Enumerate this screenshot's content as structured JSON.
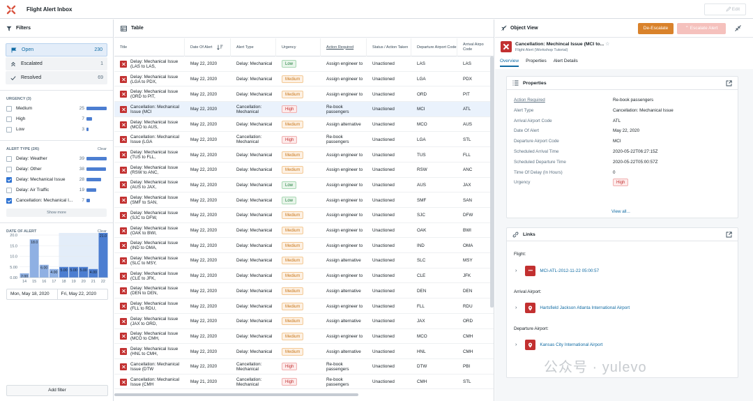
{
  "app": {
    "title": "Flight Alert Inbox",
    "edit_label": "Edit"
  },
  "filters": {
    "title": "Filters",
    "status": [
      {
        "label": "Open",
        "count": "230",
        "active": true
      },
      {
        "label": "Escalated",
        "count": "1"
      },
      {
        "label": "Resolved",
        "count": "69"
      }
    ],
    "urgency_label": "URGENCY (3)",
    "urgency": [
      {
        "label": "Medium",
        "count": "25",
        "fraction": 1.0
      },
      {
        "label": "High",
        "count": "7",
        "fraction": 0.28
      },
      {
        "label": "Low",
        "count": "3",
        "fraction": 0.12
      }
    ],
    "alert_type_label": "ALERT TYPE (2/6)",
    "clear_label": "Clear",
    "alert_types": [
      {
        "label": "Delay: Weather",
        "count": "39",
        "fraction": 1.0,
        "checked": false
      },
      {
        "label": "Delay: Other",
        "count": "38",
        "fraction": 0.97,
        "checked": false
      },
      {
        "label": "Delay: Mechanical Issue",
        "count": "28",
        "fraction": 0.72,
        "checked": true
      },
      {
        "label": "Delay: Air Traffic",
        "count": "19",
        "fraction": 0.49,
        "checked": false
      },
      {
        "label": "Cancellation: Mechanical I...",
        "count": "7",
        "fraction": 0.18,
        "checked": true
      }
    ],
    "show_more": "Show more",
    "date_label": "DATE OF ALERT",
    "date_clear": "Clear",
    "date_chart": {
      "type": "bar",
      "y_ticks": [
        "20.0",
        "15.0",
        "10.0",
        "5.00",
        "0.00"
      ],
      "x_ticks": [
        "14",
        "15",
        "16",
        "17",
        "18",
        "19",
        "20",
        "21",
        "22"
      ],
      "month_label": "May 2020",
      "values": [
        2.0,
        18.0,
        6.0,
        4.0,
        5.0,
        5.0,
        5.0,
        4.0,
        21.0
      ],
      "value_labels": [
        "2.00",
        "18.0",
        "6.00",
        "4.00",
        "5.00",
        "5.00",
        "5.00",
        "4.00",
        "21.0"
      ],
      "ylim": [
        0,
        21
      ]
    },
    "date_from": "Mon, May 18, 2020",
    "date_to": "Fri, May 22, 2020",
    "add_filter": "Add filter"
  },
  "table": {
    "title": "Table",
    "columns": [
      "Title",
      "Date Of Alert",
      "Alert Type",
      "Urgency",
      "Action Required",
      "Status / Action Taken",
      "Departure Airport Code",
      "Arrival Airpo Code"
    ],
    "rows": [
      {
        "title": "Delay: Mechanical Issue (LAS to LAS,",
        "date": "May 22, 2020",
        "type": "Delay: Mechanical",
        "urgency": "Low",
        "action": "Assign engineer to",
        "status": "Unactioned",
        "dep": "LAS",
        "arr": "LAS"
      },
      {
        "title": "Delay: Mechanical Issue (LGA to PDX,",
        "date": "May 22, 2020",
        "type": "Delay: Mechanical",
        "urgency": "Medium",
        "action": "Assign engineer to",
        "status": "Unactioned",
        "dep": "LGA",
        "arr": "PDX"
      },
      {
        "title": "Delay: Mechanical Issue (ORD to PIT,",
        "date": "May 22, 2020",
        "type": "Delay: Mechanical",
        "urgency": "Medium",
        "action": "Assign engineer to",
        "status": "Unactioned",
        "dep": "ORD",
        "arr": "PIT"
      },
      {
        "title": "Cancellation: Mechanical Issue (MCI",
        "date": "May 22, 2020",
        "type": "Cancellation: Mechanical",
        "urgency": "High",
        "action": "Re-book passengers",
        "status": "Unactioned",
        "dep": "MCI",
        "arr": "ATL",
        "selected": true
      },
      {
        "title": "Delay: Mechanical Issue (MCO to AUS,",
        "date": "May 22, 2020",
        "type": "Delay: Mechanical",
        "urgency": "Medium",
        "action": "Assign alternative",
        "status": "Unactioned",
        "dep": "MCO",
        "arr": "AUS"
      },
      {
        "title": "Cancellation: Mechanical Issue (LGA",
        "date": "May 22, 2020",
        "type": "Cancellation: Mechanical",
        "urgency": "High",
        "action": "Re-book passengers",
        "status": "Unactioned",
        "dep": "LGA",
        "arr": "STL"
      },
      {
        "title": "Delay: Mechanical Issue (TUS to FLL,",
        "date": "May 22, 2020",
        "type": "Delay: Mechanical",
        "urgency": "Medium",
        "action": "Assign engineer to",
        "status": "Unactioned",
        "dep": "TUS",
        "arr": "FLL"
      },
      {
        "title": "Delay: Mechanical Issue (RSW to ANC,",
        "date": "May 22, 2020",
        "type": "Delay: Mechanical",
        "urgency": "Medium",
        "action": "Assign engineer to",
        "status": "Unactioned",
        "dep": "RSW",
        "arr": "ANC"
      },
      {
        "title": "Delay: Mechanical Issue (AUS to JAX,",
        "date": "May 22, 2020",
        "type": "Delay: Mechanical",
        "urgency": "Low",
        "action": "Assign engineer to",
        "status": "Unactioned",
        "dep": "AUS",
        "arr": "JAX"
      },
      {
        "title": "Delay: Mechanical Issue (SMF to SAN,",
        "date": "May 22, 2020",
        "type": "Delay: Mechanical",
        "urgency": "Low",
        "action": "Assign engineer to",
        "status": "Unactioned",
        "dep": "SMF",
        "arr": "SAN"
      },
      {
        "title": "Delay: Mechanical Issue (SJC to DFW,",
        "date": "May 22, 2020",
        "type": "Delay: Mechanical",
        "urgency": "Medium",
        "action": "Assign engineer to",
        "status": "Unactioned",
        "dep": "SJC",
        "arr": "DFW"
      },
      {
        "title": "Delay: Mechanical Issue (OAK to BWI,",
        "date": "May 22, 2020",
        "type": "Delay: Mechanical",
        "urgency": "Medium",
        "action": "Assign engineer to",
        "status": "Unactioned",
        "dep": "OAK",
        "arr": "BWI"
      },
      {
        "title": "Delay: Mechanical Issue (IND to OMA,",
        "date": "May 22, 2020",
        "type": "Delay: Mechanical",
        "urgency": "Medium",
        "action": "Assign engineer to",
        "status": "Unactioned",
        "dep": "IND",
        "arr": "OMA"
      },
      {
        "title": "Delay: Mechanical Issue (SLC to MSY,",
        "date": "May 22, 2020",
        "type": "Delay: Mechanical",
        "urgency": "Medium",
        "action": "Assign alternative",
        "status": "Unactioned",
        "dep": "SLC",
        "arr": "MSY"
      },
      {
        "title": "Delay: Mechanical Issue (CLE to JFK,",
        "date": "May 22, 2020",
        "type": "Delay: Mechanical",
        "urgency": "Medium",
        "action": "Assign engineer to",
        "status": "Unactioned",
        "dep": "CLE",
        "arr": "JFK"
      },
      {
        "title": "Delay: Mechanical Issue (DEN to DEN,",
        "date": "May 22, 2020",
        "type": "Delay: Mechanical",
        "urgency": "Medium",
        "action": "Assign alternative",
        "status": "Unactioned",
        "dep": "DEN",
        "arr": "DEN"
      },
      {
        "title": "Delay: Mechanical Issue (FLL to RDU,",
        "date": "May 22, 2020",
        "type": "Delay: Mechanical",
        "urgency": "Medium",
        "action": "Assign engineer to",
        "status": "Unactioned",
        "dep": "FLL",
        "arr": "RDU"
      },
      {
        "title": "Delay: Mechanical Issue (JAX to ORD,",
        "date": "May 22, 2020",
        "type": "Delay: Mechanical",
        "urgency": "Medium",
        "action": "Assign alternative",
        "status": "Unactioned",
        "dep": "JAX",
        "arr": "ORD"
      },
      {
        "title": "Delay: Mechanical Issue (MCO to CMH,",
        "date": "May 22, 2020",
        "type": "Delay: Mechanical",
        "urgency": "Medium",
        "action": "Assign engineer to",
        "status": "Unactioned",
        "dep": "MCO",
        "arr": "CMH"
      },
      {
        "title": "Delay: Mechanical Issue (HNL to CMH,",
        "date": "May 22, 2020",
        "type": "Delay: Mechanical",
        "urgency": "Medium",
        "action": "Assign alternative",
        "status": "Unactioned",
        "dep": "HNL",
        "arr": "CMH"
      },
      {
        "title": "Cancellation: Mechanical Issue (DTW",
        "date": "May 22, 2020",
        "type": "Cancellation: Mechanical",
        "urgency": "High",
        "action": "Re-book passengers",
        "status": "Unactioned",
        "dep": "DTW",
        "arr": "PBI"
      },
      {
        "title": "Cancellation: Mechanical Issue (CMH",
        "date": "May 21, 2020",
        "type": "Cancellation: Mechanical",
        "urgency": "High",
        "action": "Re-book passengers",
        "status": "Unactioned",
        "dep": "CMH",
        "arr": "STL"
      }
    ]
  },
  "object_view": {
    "title": "Object View",
    "deescalate": "De-Escalate",
    "escalate": "Escalate Alert",
    "object_title": "Cancellation: Mechincal Issue (MCI to...",
    "object_subtitle": "Flight Alert (Workshop Tutorial)",
    "tabs": [
      "Overview",
      "Properties",
      "Alert Details"
    ],
    "properties_title": "Properties",
    "properties": [
      {
        "k": "Action Required",
        "v": "Re-book passengers"
      },
      {
        "k": "Alert Type",
        "v": "Cancellation: Mechanical Issue"
      },
      {
        "k": "Arrival Airport Code",
        "v": "ATL"
      },
      {
        "k": "Date Of Alert",
        "v": "May 22, 2020"
      },
      {
        "k": "Departure Airport Code",
        "v": "MCI"
      },
      {
        "k": "Scheduled Arrival Time",
        "v": "2020-05-22T06:27:15Z"
      },
      {
        "k": "Scheduled Departure Time",
        "v": "2020-05-22T05:00:57Z"
      },
      {
        "k": "Time Of Delay (In Hours)",
        "v": "0"
      },
      {
        "k": "Urgency",
        "v": "High"
      }
    ],
    "view_all": "View all...",
    "links_title": "Links",
    "flight_label": "Flight:",
    "flight_link": "MCI-ATL-2012-11-22 05:00:57",
    "arrival_label": "Arrival Airport:",
    "arrival_link": "Hartsfield Jackson Atlanta International Airport",
    "departure_label": "Departure Airport:",
    "departure_link": "Kansas City International Airport"
  },
  "watermark": "公众号 · yulevo"
}
